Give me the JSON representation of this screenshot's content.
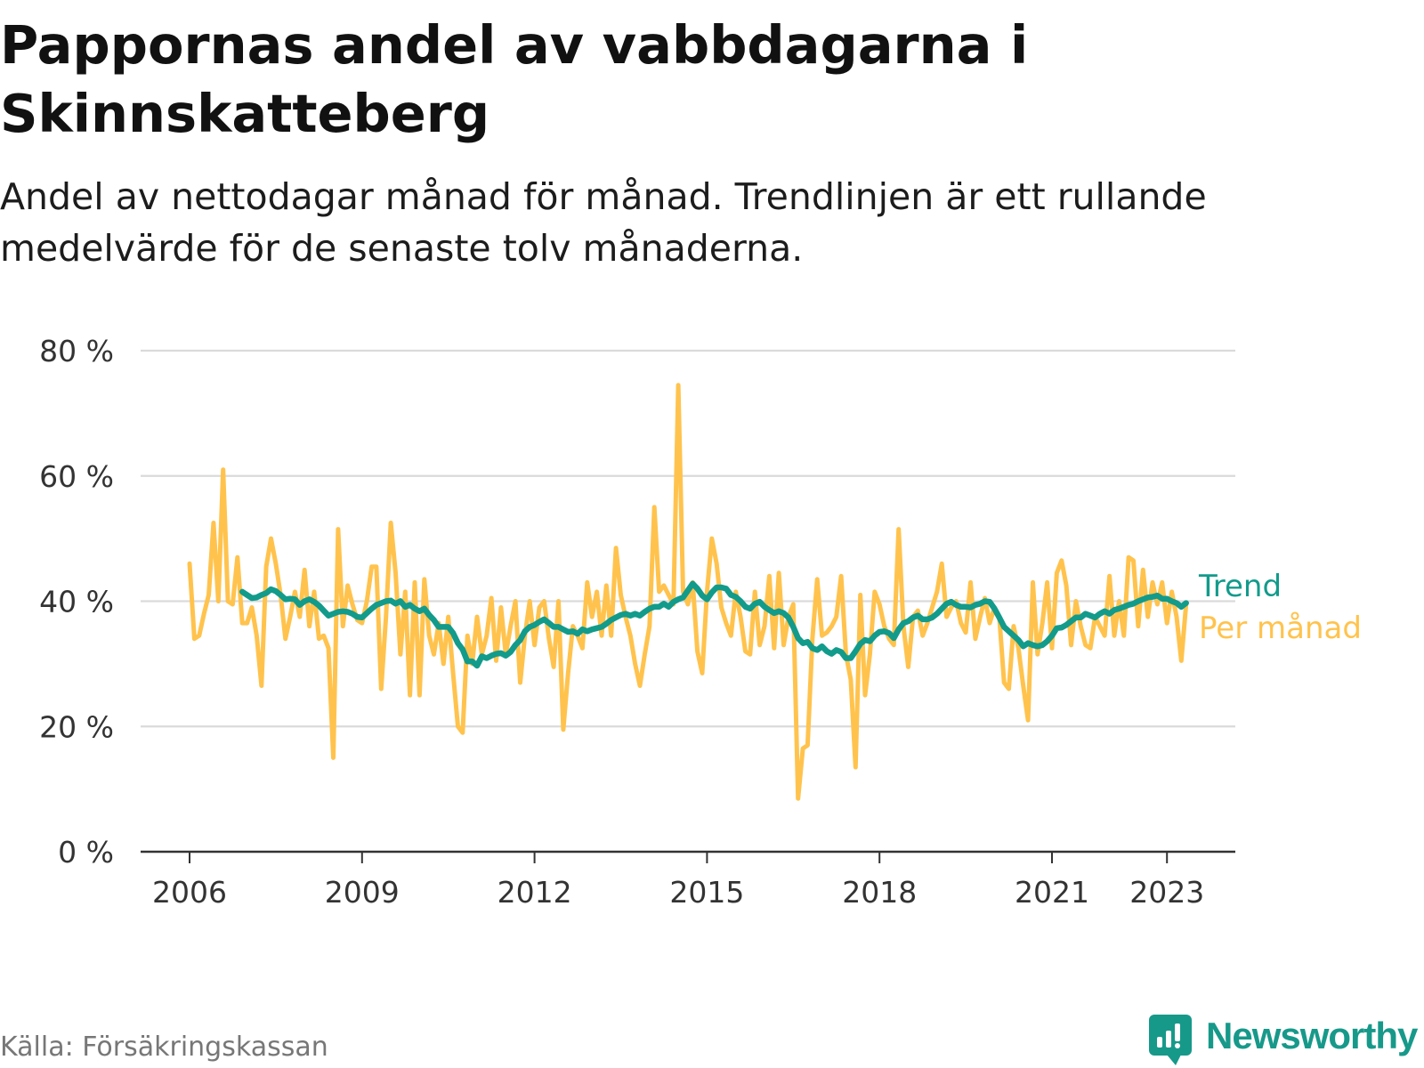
{
  "chart_data": {
    "type": "line",
    "title": "Pappornas andel av vabbdagarna i Skinnskatteberg",
    "subtitle": "Andel av nettodagar månad för månad. Trendlinjen är ett rullande medelvärde för de senaste tolv månaderna.",
    "ylim": [
      0,
      80
    ],
    "yticks": [
      0,
      20,
      40,
      60,
      80
    ],
    "ytick_labels": [
      "0 %",
      "20 %",
      "40 %",
      "60 %",
      "80 %"
    ],
    "xticks": [
      "2006-01",
      "2009-01",
      "2012-01",
      "2015-01",
      "2018-01",
      "2021-01",
      "2023-01"
    ],
    "xtick_labels": [
      "2006",
      "2009",
      "2012",
      "2015",
      "2018",
      "2021",
      "2023"
    ],
    "grid": true,
    "legend_position": "right",
    "x": [
      "2006-01",
      "2006-02",
      "2006-03",
      "2006-04",
      "2006-05",
      "2006-06",
      "2006-07",
      "2006-08",
      "2006-09",
      "2006-10",
      "2006-11",
      "2006-12",
      "2007-01",
      "2007-02",
      "2007-03",
      "2007-04",
      "2007-05",
      "2007-06",
      "2007-07",
      "2007-08",
      "2007-09",
      "2007-10",
      "2007-11",
      "2007-12",
      "2008-01",
      "2008-02",
      "2008-03",
      "2008-04",
      "2008-05",
      "2008-06",
      "2008-07",
      "2008-08",
      "2008-09",
      "2008-10",
      "2008-11",
      "2008-12",
      "2009-01",
      "2009-02",
      "2009-03",
      "2009-04",
      "2009-05",
      "2009-06",
      "2009-07",
      "2009-08",
      "2009-09",
      "2009-10",
      "2009-11",
      "2009-12",
      "2010-01",
      "2010-02",
      "2010-03",
      "2010-04",
      "2010-05",
      "2010-06",
      "2010-07",
      "2010-08",
      "2010-09",
      "2010-10",
      "2010-11",
      "2010-12",
      "2011-01",
      "2011-02",
      "2011-03",
      "2011-04",
      "2011-05",
      "2011-06",
      "2011-07",
      "2011-08",
      "2011-09",
      "2011-10",
      "2011-11",
      "2011-12",
      "2012-01",
      "2012-02",
      "2012-03",
      "2012-04",
      "2012-05",
      "2012-06",
      "2012-07",
      "2012-08",
      "2012-09",
      "2012-10",
      "2012-11",
      "2012-12",
      "2013-01",
      "2013-02",
      "2013-03",
      "2013-04",
      "2013-05",
      "2013-06",
      "2013-07",
      "2013-08",
      "2013-09",
      "2013-10",
      "2013-11",
      "2013-12",
      "2014-01",
      "2014-02",
      "2014-03",
      "2014-04",
      "2014-05",
      "2014-06",
      "2014-07",
      "2014-08",
      "2014-09",
      "2014-10",
      "2014-11",
      "2014-12",
      "2015-01",
      "2015-02",
      "2015-03",
      "2015-04",
      "2015-05",
      "2015-06",
      "2015-07",
      "2015-08",
      "2015-09",
      "2015-10",
      "2015-11",
      "2015-12",
      "2016-01",
      "2016-02",
      "2016-03",
      "2016-04",
      "2016-05",
      "2016-06",
      "2016-07",
      "2016-08",
      "2016-09",
      "2016-10",
      "2016-11",
      "2016-12",
      "2017-01",
      "2017-02",
      "2017-03",
      "2017-04",
      "2017-05",
      "2017-06",
      "2017-07",
      "2017-08",
      "2017-09",
      "2017-10",
      "2017-11",
      "2017-12",
      "2018-01",
      "2018-02",
      "2018-03",
      "2018-04",
      "2018-05",
      "2018-06",
      "2018-07",
      "2018-08",
      "2018-09",
      "2018-10",
      "2018-11",
      "2018-12",
      "2019-01",
      "2019-02",
      "2019-03",
      "2019-04",
      "2019-05",
      "2019-06",
      "2019-07",
      "2019-08",
      "2019-09",
      "2019-10",
      "2019-11",
      "2019-12",
      "2020-01",
      "2020-02",
      "2020-03",
      "2020-04",
      "2020-05",
      "2020-06",
      "2020-07",
      "2020-08",
      "2020-09",
      "2020-10",
      "2020-11",
      "2020-12",
      "2021-01",
      "2021-02",
      "2021-03",
      "2021-04",
      "2021-05",
      "2021-06",
      "2021-07",
      "2021-08",
      "2021-09",
      "2021-10",
      "2021-11",
      "2021-12",
      "2022-01",
      "2022-02",
      "2022-03",
      "2022-04",
      "2022-05",
      "2022-06",
      "2022-07",
      "2022-08",
      "2022-09",
      "2022-10",
      "2022-11",
      "2022-12",
      "2023-01",
      "2023-02",
      "2023-03",
      "2023-04",
      "2023-05"
    ],
    "series": [
      {
        "name": "Per månad",
        "color": "#ffc34d",
        "values": [
          46,
          34,
          34.5,
          38,
          41,
          52.5,
          40,
          61,
          40,
          39.5,
          47,
          36.5,
          36.5,
          39,
          34.5,
          26.5,
          45.5,
          50,
          46,
          41,
          34,
          37.5,
          41.5,
          37.5,
          45,
          36,
          41.5,
          34,
          34.5,
          32.5,
          15,
          51.5,
          36,
          42.5,
          39.5,
          37,
          36.5,
          40,
          45.5,
          45.5,
          26,
          37.5,
          52.5,
          44.5,
          31.5,
          41.5,
          25,
          43,
          25,
          43.5,
          34.5,
          31.5,
          36.5,
          30,
          37.5,
          28.5,
          20,
          19,
          34.5,
          30,
          37.5,
          31.5,
          34.5,
          40.5,
          30.5,
          39,
          31.5,
          36,
          40,
          27,
          34.5,
          40,
          33,
          39,
          40,
          34,
          29.5,
          40,
          19.5,
          28.5,
          36,
          34.5,
          32.5,
          43,
          37.5,
          41.5,
          34.5,
          42.5,
          34.5,
          48.5,
          41,
          37.5,
          34.5,
          30,
          26.5,
          31.5,
          36,
          55,
          41.5,
          42.5,
          41,
          39.5,
          74.5,
          41.5,
          39.5,
          43,
          32,
          28.5,
          41.5,
          50,
          46,
          39,
          36.5,
          34.5,
          41.5,
          37.5,
          32,
          31.5,
          41.5,
          33,
          36,
          44,
          32.5,
          44.5,
          33,
          37.5,
          39.5,
          8.5,
          16.5,
          17,
          34,
          43.5,
          34.5,
          35,
          36,
          37.5,
          44,
          31.5,
          27.5,
          13.5,
          41,
          25,
          31.5,
          41.5,
          39.5,
          36,
          34,
          33,
          51.5,
          36,
          29.5,
          37.5,
          38.5,
          34.5,
          36.5,
          39,
          41.5,
          46,
          37.5,
          39,
          40,
          36.5,
          35,
          43,
          34,
          37.5,
          40.5,
          36.5,
          39,
          37.5,
          27,
          26,
          36,
          32.5,
          26.5,
          21,
          43,
          31.5,
          36.5,
          43,
          32.5,
          44.5,
          46.5,
          42.5,
          33,
          40,
          36,
          33,
          32.5,
          37.5,
          36,
          34.5,
          44,
          34.5,
          40,
          34.5,
          47,
          46.5,
          36,
          45,
          37.5,
          43,
          39.5,
          43,
          36.5,
          41.5,
          37.5,
          30.5,
          39.5
        ]
      },
      {
        "name": "Trend",
        "color": "#129b8b",
        "values": [
          null,
          null,
          null,
          null,
          null,
          null,
          null,
          null,
          null,
          null,
          null,
          41.5,
          41,
          40.5,
          40.6,
          41,
          41.3,
          41.9,
          41.6,
          41,
          40.3,
          40.4,
          40.3,
          39.4,
          40,
          40.3,
          39.9,
          39.3,
          38.5,
          37.7,
          38,
          38.3,
          38.4,
          38.3,
          38,
          37.5,
          37.4,
          38.1,
          38.8,
          39.4,
          39.7,
          40,
          40.1,
          39.6,
          40,
          39.1,
          39.4,
          38.8,
          38.4,
          38.8,
          37.8,
          37,
          35.9,
          35.9,
          35.9,
          34.9,
          33.3,
          32.3,
          30.4,
          30.4,
          29.7,
          31.2,
          30.9,
          31.3,
          31.6,
          31.7,
          31.3,
          31.9,
          33,
          33.8,
          35.2,
          35.9,
          36.2,
          36.7,
          37.1,
          36.5,
          35.9,
          35.9,
          35.5,
          35.1,
          35.2,
          34.8,
          35.5,
          35.2,
          35.5,
          35.7,
          35.9,
          36.4,
          37,
          37.4,
          37.8,
          38,
          37.7,
          38,
          37.7,
          38.3,
          38.8,
          39.1,
          39.1,
          39.6,
          39.1,
          39.9,
          40.3,
          40.6,
          41.7,
          42.8,
          42,
          40.9,
          40.3,
          41.4,
          42.2,
          42.2,
          42,
          41,
          40.7,
          40,
          39.1,
          38.8,
          39.6,
          39.9,
          39.1,
          38.6,
          38.1,
          38.4,
          38.1,
          37.4,
          35.9,
          34.1,
          33.3,
          33.5,
          32.5,
          32.2,
          32.8,
          32,
          31.6,
          32.2,
          31.9,
          30.9,
          30.9,
          32,
          33.2,
          33.8,
          33.6,
          34.5,
          35.1,
          35.2,
          34.9,
          34.1,
          35.5,
          36.5,
          36.8,
          37.4,
          37.7,
          37.1,
          37.1,
          37.4,
          38,
          38.8,
          39.6,
          39.9,
          39.4,
          39.1,
          39.1,
          39,
          39.4,
          39.6,
          40,
          39.9,
          38.8,
          37.4,
          35.9,
          35.2,
          34.5,
          33.8,
          32.8,
          33.3,
          33,
          32.8,
          33,
          33.6,
          34.5,
          35.7,
          35.8,
          36.2,
          36.8,
          37.4,
          37.4,
          38,
          37.7,
          37.4,
          38,
          38.4,
          38,
          38.6,
          38.8,
          39.1,
          39.4,
          39.6,
          40,
          40.3,
          40.6,
          40.7,
          40.9,
          40.4,
          40.4,
          40,
          39.7,
          39.1,
          39.7
        ]
      }
    ]
  },
  "source": "Källa: Försäkringskassan",
  "brand": {
    "name": "Newsworthy",
    "icon": "newsworthy-bar-chart-bubble-icon",
    "color": "#17998a"
  }
}
